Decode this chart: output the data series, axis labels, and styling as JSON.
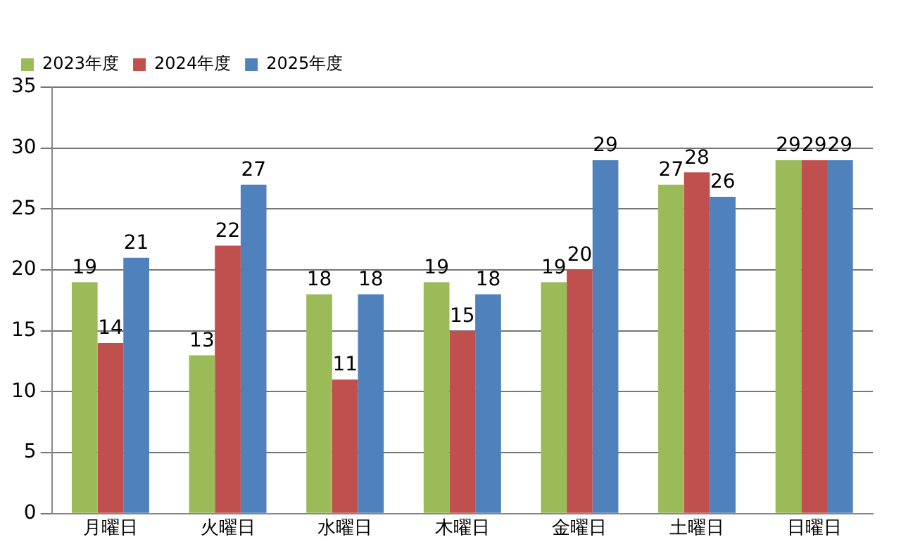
{
  "chart_data": {
    "type": "bar",
    "categories": [
      "月曜日",
      "火曜日",
      "水曜日",
      "木曜日",
      "金曜日",
      "土曜日",
      "日曜日"
    ],
    "series": [
      {
        "name": "2023年度",
        "color": "#9bbb59",
        "values": [
          19,
          13,
          18,
          19,
          19,
          27,
          29
        ]
      },
      {
        "name": "2024年度",
        "color": "#c0504d",
        "values": [
          14,
          22,
          11,
          15,
          20,
          28,
          29
        ]
      },
      {
        "name": "2025年度",
        "color": "#4f81bd",
        "values": [
          21,
          27,
          18,
          18,
          29,
          26,
          29
        ]
      }
    ],
    "ylim": [
      0,
      35
    ],
    "yticks": [
      0,
      5,
      10,
      15,
      20,
      25,
      30,
      35
    ],
    "grid": "y",
    "legend": "top left",
    "data_labels": true
  }
}
